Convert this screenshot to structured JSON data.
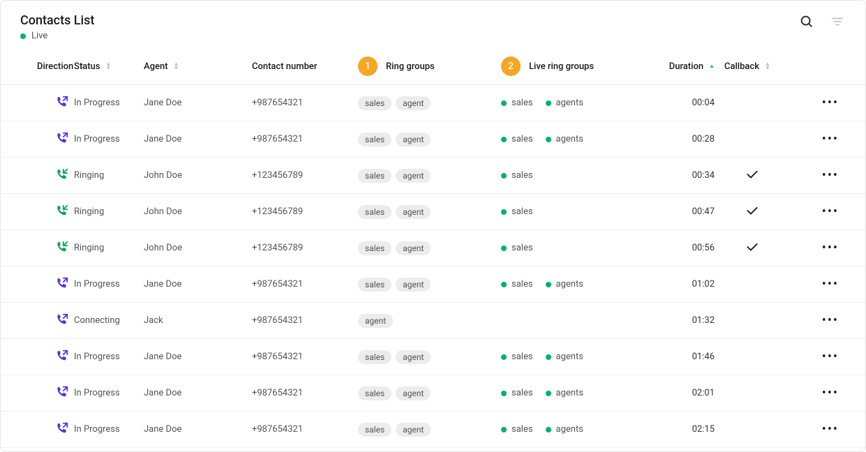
{
  "header": {
    "title": "Contacts List",
    "live_label": "Live",
    "live_dot_color": "#00b368"
  },
  "colors": {
    "badge_bg": "#f5a623",
    "green_dot": "#00b368",
    "outgoing_icon": "#5b2fe0",
    "incoming_icon": "#0aa84f",
    "sort_active": "#2196f3"
  },
  "columns": {
    "direction": "Direction",
    "status": "Status",
    "agent": "Agent",
    "number": "Contact number",
    "ring_groups": "Ring groups",
    "live_ring_groups": "Live ring groups",
    "duration": "Duration",
    "callback": "Callback",
    "badge1": "1",
    "badge2": "2"
  },
  "rows": [
    {
      "direction": "outgoing",
      "status": "In Progress",
      "agent": "Jane Doe",
      "number": "+987654321",
      "ring_groups": [
        "sales",
        "agent"
      ],
      "live_groups": [
        "sales",
        "agents"
      ],
      "duration": "00:04",
      "callback": false
    },
    {
      "direction": "outgoing",
      "status": "In Progress",
      "agent": "Jane Doe",
      "number": "+987654321",
      "ring_groups": [
        "sales",
        "agent"
      ],
      "live_groups": [
        "sales",
        "agents"
      ],
      "duration": "00:28",
      "callback": false
    },
    {
      "direction": "incoming",
      "status": "Ringing",
      "agent": "John Doe",
      "number": "+123456789",
      "ring_groups": [
        "sales",
        "agent"
      ],
      "live_groups": [
        "sales"
      ],
      "duration": "00:34",
      "callback": true
    },
    {
      "direction": "incoming",
      "status": "Ringing",
      "agent": "John Doe",
      "number": "+123456789",
      "ring_groups": [
        "sales",
        "agent"
      ],
      "live_groups": [
        "sales"
      ],
      "duration": "00:47",
      "callback": true
    },
    {
      "direction": "incoming",
      "status": "Ringing",
      "agent": "John Doe",
      "number": "+123456789",
      "ring_groups": [
        "sales",
        "agent"
      ],
      "live_groups": [
        "sales"
      ],
      "duration": "00:56",
      "callback": true
    },
    {
      "direction": "outgoing",
      "status": "In Progress",
      "agent": "Jane Doe",
      "number": "+987654321",
      "ring_groups": [
        "sales",
        "agent"
      ],
      "live_groups": [
        "sales",
        "agents"
      ],
      "duration": "01:02",
      "callback": false
    },
    {
      "direction": "outgoing",
      "status": "Connecting",
      "agent": "Jack",
      "number": "+987654321",
      "ring_groups": [
        "agent"
      ],
      "live_groups": [],
      "duration": "01:32",
      "callback": false
    },
    {
      "direction": "outgoing",
      "status": "In Progress",
      "agent": "Jane Doe",
      "number": "+987654321",
      "ring_groups": [
        "sales",
        "agent"
      ],
      "live_groups": [
        "sales",
        "agents"
      ],
      "duration": "01:46",
      "callback": false
    },
    {
      "direction": "outgoing",
      "status": "In Progress",
      "agent": "Jane Doe",
      "number": "+987654321",
      "ring_groups": [
        "sales",
        "agent"
      ],
      "live_groups": [
        "sales",
        "agents"
      ],
      "duration": "02:01",
      "callback": false
    },
    {
      "direction": "outgoing",
      "status": "In Progress",
      "agent": "Jane Doe",
      "number": "+987654321",
      "ring_groups": [
        "sales",
        "agent"
      ],
      "live_groups": [
        "sales",
        "agents"
      ],
      "duration": "02:15",
      "callback": false
    }
  ]
}
